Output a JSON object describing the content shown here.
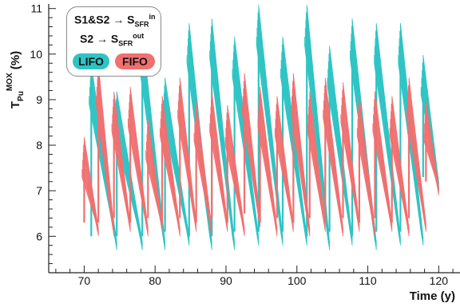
{
  "chart_data": {
    "type": "line",
    "title": "",
    "xlabel": "Time (y)",
    "ylabel_base": "T",
    "ylabel_sub": "Pu",
    "ylabel_sup": "MOX",
    "ylabel_unit": " (%)",
    "xlim": [
      65,
      123
    ],
    "ylim": [
      5.2,
      11.1
    ],
    "x_ticks": [
      70,
      80,
      90,
      100,
      110,
      120
    ],
    "y_ticks": [
      6,
      7,
      8,
      9,
      10,
      11
    ],
    "grid": false,
    "legend_placement": "top-left",
    "legend": {
      "line1_left": "S1&S2 → S",
      "line1_sub": "SFR",
      "line1_sup": "in",
      "line2_left": "S2 → S",
      "line2_sub": "SFR",
      "line2_sup": "out"
    },
    "series": [
      {
        "name": "LIFO",
        "color": "#2ec4c4",
        "cycles": [
          {
            "x0": 71.0,
            "x1": 74.6,
            "top": 9.6,
            "bottom": 5.7
          },
          {
            "x0": 74.6,
            "x1": 78.2,
            "top": 9.0,
            "bottom": 5.7
          },
          {
            "x0": 78.2,
            "x1": 81.4,
            "top": 10.3,
            "bottom": 5.7
          },
          {
            "x0": 81.4,
            "x1": 84.8,
            "top": 9.3,
            "bottom": 5.8
          },
          {
            "x0": 84.8,
            "x1": 88.0,
            "top": 10.5,
            "bottom": 5.7
          },
          {
            "x0": 88.0,
            "x1": 91.2,
            "top": 10.6,
            "bottom": 5.7
          },
          {
            "x0": 91.2,
            "x1": 94.6,
            "top": 10.2,
            "bottom": 5.8
          },
          {
            "x0": 94.6,
            "x1": 98.0,
            "top": 10.9,
            "bottom": 5.8
          },
          {
            "x0": 98.0,
            "x1": 101.4,
            "top": 10.2,
            "bottom": 5.8
          },
          {
            "x0": 101.4,
            "x1": 104.6,
            "top": 10.9,
            "bottom": 5.7
          },
          {
            "x0": 104.6,
            "x1": 107.8,
            "top": 10.0,
            "bottom": 5.8
          },
          {
            "x0": 107.8,
            "x1": 111.2,
            "top": 10.6,
            "bottom": 5.7
          },
          {
            "x0": 111.2,
            "x1": 114.6,
            "top": 10.5,
            "bottom": 5.8
          },
          {
            "x0": 114.6,
            "x1": 117.8,
            "top": 10.5,
            "bottom": 5.8
          },
          {
            "x0": 117.8,
            "x1": 120.0,
            "top": 9.8,
            "bottom": 7.0
          }
        ]
      },
      {
        "name": "FIFO",
        "color": "#f07070",
        "cycles": [
          {
            "x0": 70.0,
            "x1": 72.0,
            "top": 8.0,
            "bottom": 6.0
          },
          {
            "x0": 72.0,
            "x1": 74.2,
            "top": 9.6,
            "bottom": 6.0
          },
          {
            "x0": 74.2,
            "x1": 76.5,
            "top": 9.0,
            "bottom": 6.1
          },
          {
            "x0": 76.5,
            "x1": 79.0,
            "top": 9.1,
            "bottom": 6.0
          },
          {
            "x0": 79.0,
            "x1": 81.0,
            "top": 8.4,
            "bottom": 6.1
          },
          {
            "x0": 81.0,
            "x1": 83.5,
            "top": 8.9,
            "bottom": 6.0
          },
          {
            "x0": 83.5,
            "x1": 85.8,
            "top": 9.3,
            "bottom": 6.1
          },
          {
            "x0": 85.8,
            "x1": 88.0,
            "top": 8.8,
            "bottom": 6.0
          },
          {
            "x0": 88.0,
            "x1": 90.2,
            "top": 9.0,
            "bottom": 6.1
          },
          {
            "x0": 90.2,
            "x1": 92.6,
            "top": 8.7,
            "bottom": 6.0
          },
          {
            "x0": 92.6,
            "x1": 94.8,
            "top": 9.4,
            "bottom": 6.2
          },
          {
            "x0": 94.8,
            "x1": 97.2,
            "top": 9.1,
            "bottom": 6.0
          },
          {
            "x0": 97.2,
            "x1": 99.5,
            "top": 8.9,
            "bottom": 6.1
          },
          {
            "x0": 99.5,
            "x1": 101.8,
            "top": 9.4,
            "bottom": 6.0
          },
          {
            "x0": 101.8,
            "x1": 104.0,
            "top": 9.0,
            "bottom": 6.1
          },
          {
            "x0": 104.0,
            "x1": 106.5,
            "top": 9.3,
            "bottom": 6.0
          },
          {
            "x0": 106.5,
            "x1": 108.8,
            "top": 9.2,
            "bottom": 6.1
          },
          {
            "x0": 108.8,
            "x1": 111.0,
            "top": 8.9,
            "bottom": 6.0
          },
          {
            "x0": 111.0,
            "x1": 113.4,
            "top": 9.0,
            "bottom": 6.1
          },
          {
            "x0": 113.4,
            "x1": 115.8,
            "top": 8.9,
            "bottom": 6.0
          },
          {
            "x0": 115.8,
            "x1": 118.2,
            "top": 9.3,
            "bottom": 6.1
          },
          {
            "x0": 118.2,
            "x1": 120.0,
            "top": 8.8,
            "bottom": 6.9
          }
        ]
      }
    ]
  }
}
